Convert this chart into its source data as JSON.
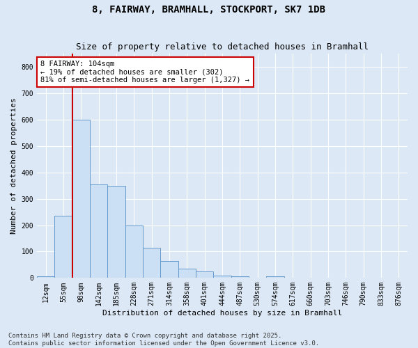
{
  "title_line1": "8, FAIRWAY, BRAMHALL, STOCKPORT, SK7 1DB",
  "title_line2": "Size of property relative to detached houses in Bramhall",
  "xlabel": "Distribution of detached houses by size in Bramhall",
  "ylabel": "Number of detached properties",
  "bin_labels": [
    "12sqm",
    "55sqm",
    "98sqm",
    "142sqm",
    "185sqm",
    "228sqm",
    "271sqm",
    "314sqm",
    "358sqm",
    "401sqm",
    "444sqm",
    "487sqm",
    "530sqm",
    "574sqm",
    "617sqm",
    "660sqm",
    "703sqm",
    "746sqm",
    "790sqm",
    "833sqm",
    "876sqm"
  ],
  "bar_values": [
    5,
    235,
    600,
    355,
    350,
    200,
    115,
    65,
    35,
    25,
    10,
    5,
    0,
    5,
    0,
    0,
    0,
    0,
    0,
    0,
    0
  ],
  "bar_color": "#cce0f5",
  "bar_edge_color": "#6699cc",
  "ylim": [
    0,
    850
  ],
  "yticks": [
    0,
    100,
    200,
    300,
    400,
    500,
    600,
    700,
    800
  ],
  "red_line_x": 1.5,
  "red_line_color": "#cc0000",
  "annotation_text": "8 FAIRWAY: 104sqm\n← 19% of detached houses are smaller (302)\n81% of semi-detached houses are larger (1,327) →",
  "annotation_box_color": "#ffffff",
  "annotation_border_color": "#cc0000",
  "footnote_line1": "Contains HM Land Registry data © Crown copyright and database right 2025.",
  "footnote_line2": "Contains public sector information licensed under the Open Government Licence v3.0.",
  "background_color": "#dce8f5",
  "plot_background_color": "#dce8f5",
  "grid_color": "#ffffff",
  "title_fontsize": 10,
  "subtitle_fontsize": 9,
  "axis_label_fontsize": 8,
  "tick_fontsize": 7,
  "annotation_fontsize": 7.5,
  "footnote_fontsize": 6.5
}
